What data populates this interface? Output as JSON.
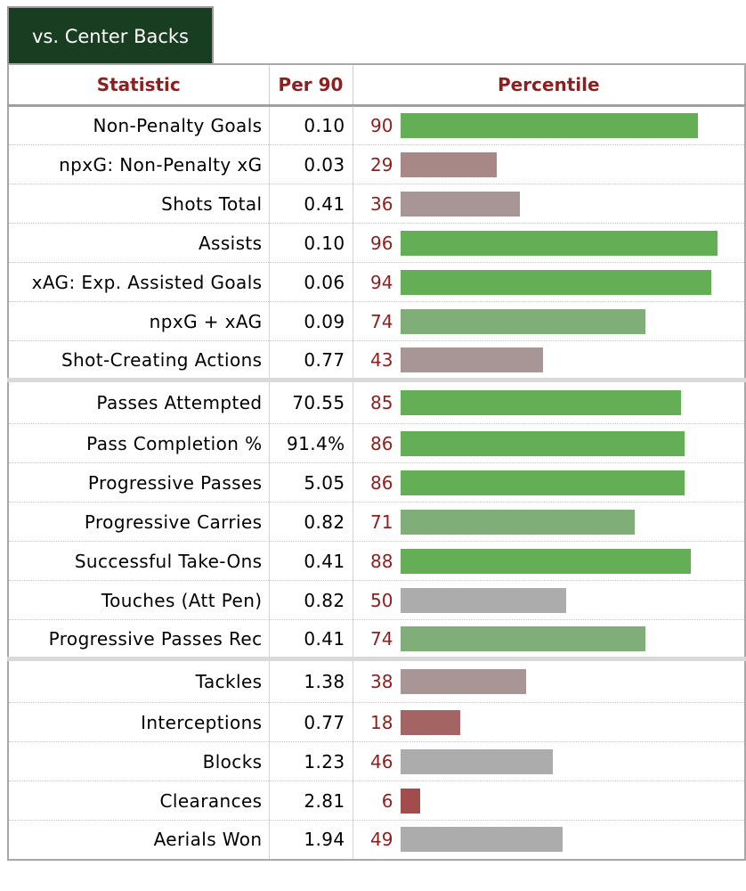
{
  "tab": {
    "label": "vs. Center Backs"
  },
  "headers": {
    "statistic": "Statistic",
    "per90": "Per 90",
    "percentile": "Percentile"
  },
  "colors": {
    "high": "#64ae56",
    "mid_high": "#80ae79",
    "neutral": "#acacac",
    "low_mid": "#a89696",
    "low": "#a88787",
    "very_low": "#a46464",
    "lowest": "#a24c4c",
    "text_accent": "#8f1e1e",
    "tab_bg": "#183d21"
  },
  "groups": [
    {
      "rows": [
        {
          "stat": "Non-Penalty Goals",
          "per90": "0.10",
          "percentile": 90
        },
        {
          "stat": "npxG: Non-Penalty xG",
          "per90": "0.03",
          "percentile": 29
        },
        {
          "stat": "Shots Total",
          "per90": "0.41",
          "percentile": 36
        },
        {
          "stat": "Assists",
          "per90": "0.10",
          "percentile": 96
        },
        {
          "stat": "xAG: Exp. Assisted Goals",
          "per90": "0.06",
          "percentile": 94
        },
        {
          "stat": "npxG + xAG",
          "per90": "0.09",
          "percentile": 74
        },
        {
          "stat": "Shot-Creating Actions",
          "per90": "0.77",
          "percentile": 43
        }
      ]
    },
    {
      "rows": [
        {
          "stat": "Passes Attempted",
          "per90": "70.55",
          "percentile": 85
        },
        {
          "stat": "Pass Completion %",
          "per90": "91.4%",
          "percentile": 86
        },
        {
          "stat": "Progressive Passes",
          "per90": "5.05",
          "percentile": 86
        },
        {
          "stat": "Progressive Carries",
          "per90": "0.82",
          "percentile": 71
        },
        {
          "stat": "Successful Take-Ons",
          "per90": "0.41",
          "percentile": 88
        },
        {
          "stat": "Touches (Att Pen)",
          "per90": "0.82",
          "percentile": 50
        },
        {
          "stat": "Progressive Passes Rec",
          "per90": "0.41",
          "percentile": 74
        }
      ]
    },
    {
      "rows": [
        {
          "stat": "Tackles",
          "per90": "1.38",
          "percentile": 38
        },
        {
          "stat": "Interceptions",
          "per90": "0.77",
          "percentile": 18
        },
        {
          "stat": "Blocks",
          "per90": "1.23",
          "percentile": 46
        },
        {
          "stat": "Clearances",
          "per90": "2.81",
          "percentile": 6
        },
        {
          "stat": "Aerials Won",
          "per90": "1.94",
          "percentile": 49
        }
      ]
    }
  ]
}
